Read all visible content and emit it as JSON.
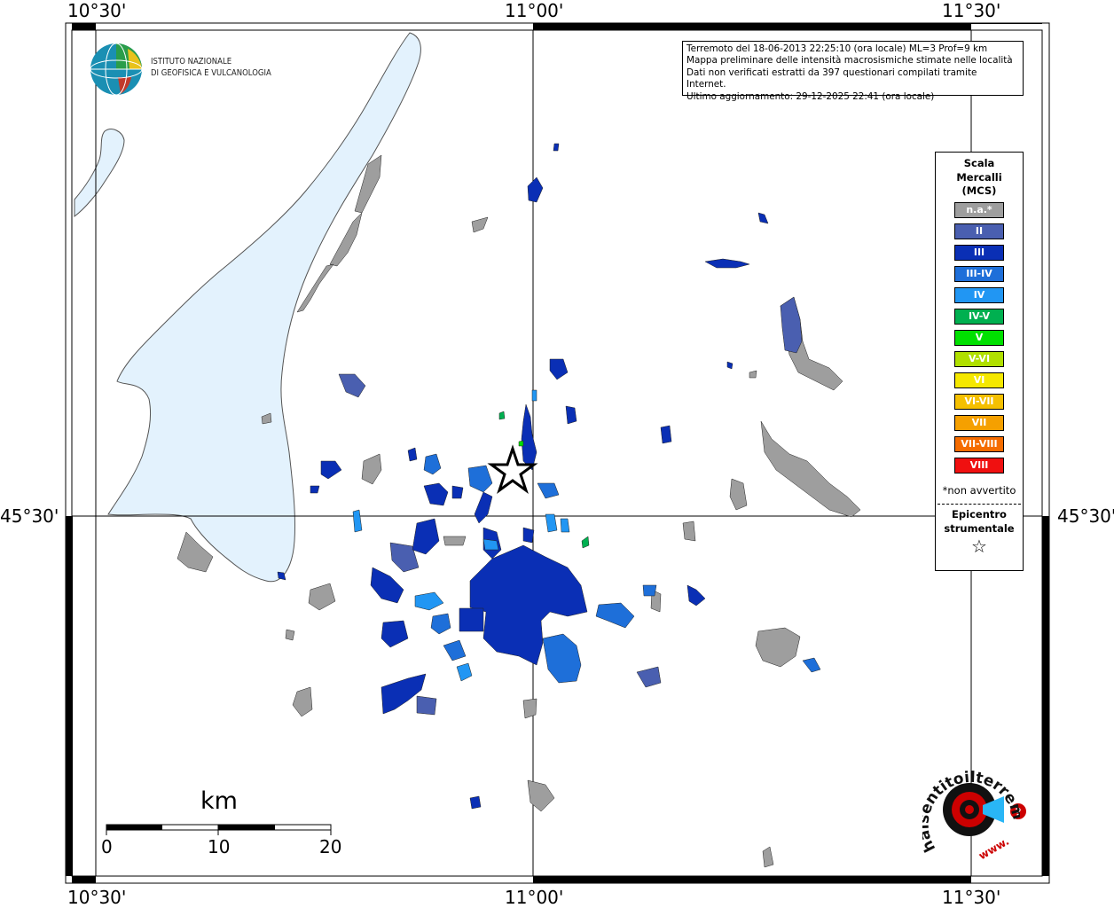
{
  "map": {
    "lon_labels": [
      "10°30'",
      "11°00'",
      "11°30'"
    ],
    "lat_labels": [
      "45°30'"
    ],
    "colors": {
      "lake": "#e3f2fd",
      "na": "#9e9e9e",
      "II": "#4a5fb0",
      "III": "#0a2fb5",
      "III-IV": "#1e6fd9",
      "IV": "#2196f3"
    }
  },
  "infobox": {
    "line1": "Terremoto del 18-06-2013 22:25:10 (ora locale) ML=3 Prof=9 km",
    "line2": "Mappa preliminare delle intensità macrosismiche stimate nelle località",
    "line3": "Dati non verificati estratti da 397 questionari compilati tramite Internet.",
    "line4": "Ultimo aggiornamento: 29-12-2025 22:41 (ora locale)"
  },
  "logo_ingv": {
    "line1": "ISTITUTO NAZIONALE",
    "line2": "DI GEOFISICA E VULCANOLOGIA"
  },
  "legend": {
    "title1": "Scala",
    "title2": "Mercalli",
    "title3": "(MCS)",
    "items": [
      {
        "label": "n.a.*",
        "color": "#9e9e9e"
      },
      {
        "label": "II",
        "color": "#4a5fb0"
      },
      {
        "label": "III",
        "color": "#0a2fb5"
      },
      {
        "label": "III-IV",
        "color": "#1e6fd9"
      },
      {
        "label": "IV",
        "color": "#2196f3"
      },
      {
        "label": "IV-V",
        "color": "#00b050"
      },
      {
        "label": "V",
        "color": "#00e000"
      },
      {
        "label": "V-VI",
        "color": "#b0e000"
      },
      {
        "label": "VI",
        "color": "#f5e800"
      },
      {
        "label": "VI-VII",
        "color": "#f5c000"
      },
      {
        "label": "VII",
        "color": "#f5a000"
      },
      {
        "label": "VII-VIII",
        "color": "#f56c00"
      },
      {
        "label": "VIII",
        "color": "#f01010"
      }
    ],
    "note": "*non avvertito",
    "epi1": "Epicentro",
    "epi2": "strumentale",
    "epi_symbol": "☆"
  },
  "scalebar": {
    "title": "km",
    "ticks": [
      "0",
      "10",
      "20"
    ]
  },
  "watermark": {
    "text1": "haisentitoilterremoto.it",
    "text2": "www."
  }
}
